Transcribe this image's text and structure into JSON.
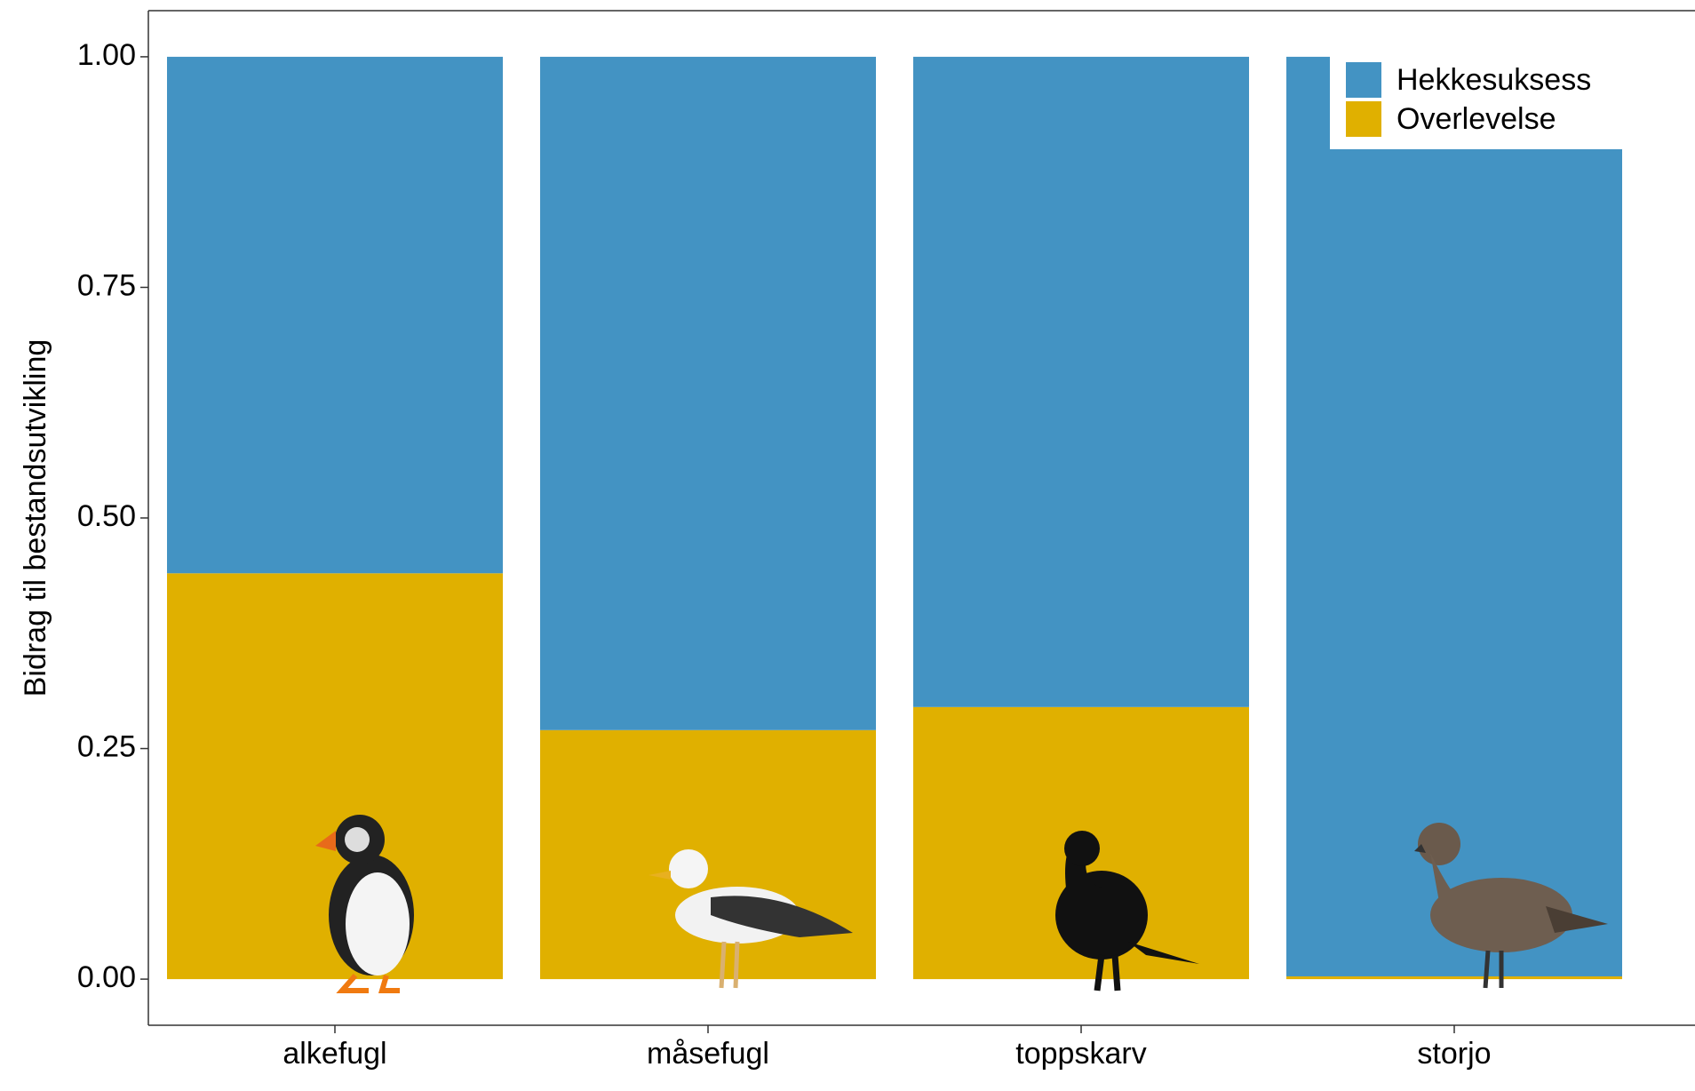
{
  "chart_data": {
    "type": "stacked-bar",
    "y_label": "Bidrag til bestandsutvikling",
    "categories": [
      "alkefugl",
      "måsefugl",
      "toppskarv",
      "storjo"
    ],
    "series": [
      {
        "name": "Overlevelse",
        "color": "#e0b000",
        "values": [
          0.44,
          0.27,
          0.295,
          0.003
        ]
      },
      {
        "name": "Hekkesuksess",
        "color": "#4393c3",
        "values": [
          0.56,
          0.73,
          0.705,
          0.997
        ]
      }
    ],
    "legend_order": [
      1,
      0
    ],
    "legend_position": "top-right",
    "ylim": [
      -0.05,
      1.05
    ],
    "yticks": [
      {
        "value": 0,
        "label": "0.00"
      },
      {
        "value": 0.25,
        "label": "0.25"
      },
      {
        "value": 0.5,
        "label": "0.50"
      },
      {
        "value": 0.75,
        "label": "0.75"
      },
      {
        "value": 1,
        "label": "1.00"
      }
    ]
  }
}
